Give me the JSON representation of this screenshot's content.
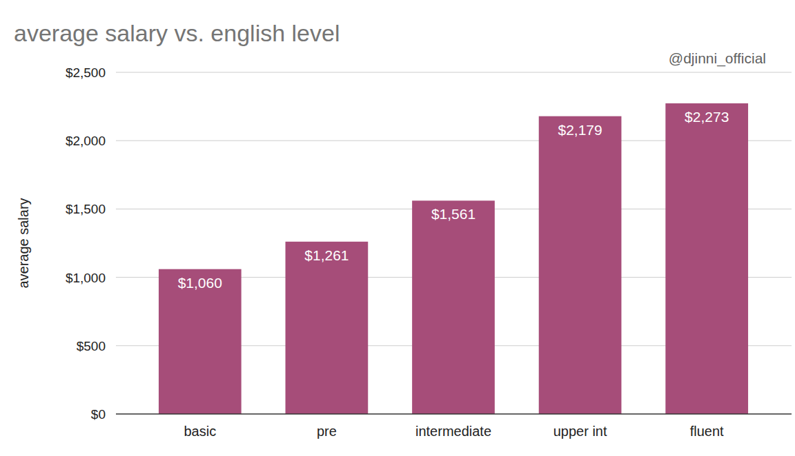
{
  "chart_data": {
    "type": "bar",
    "title": "average salary vs. english level",
    "annotations": [
      "@djinni_official"
    ],
    "y_label": "average salary",
    "categories": [
      "basic",
      "pre",
      "intermediate",
      "upper int",
      "fluent"
    ],
    "values": [
      1060,
      1261,
      1561,
      2179,
      2273
    ],
    "value_labels": [
      "$1,060",
      "$1,261",
      "$1,561",
      "$2,179",
      "$2,273"
    ],
    "color": "#a64d79",
    "ylim": [
      0,
      2500
    ],
    "yticks": [
      {
        "value": 0,
        "label": "$0"
      },
      {
        "value": 500,
        "label": "$500"
      },
      {
        "value": 1000,
        "label": "$1,000"
      },
      {
        "value": 1500,
        "label": "$1,500"
      },
      {
        "value": 2000,
        "label": "$2,000"
      },
      {
        "value": 2500,
        "label": "$2,500"
      }
    ],
    "grid": true,
    "data_labels": true
  }
}
